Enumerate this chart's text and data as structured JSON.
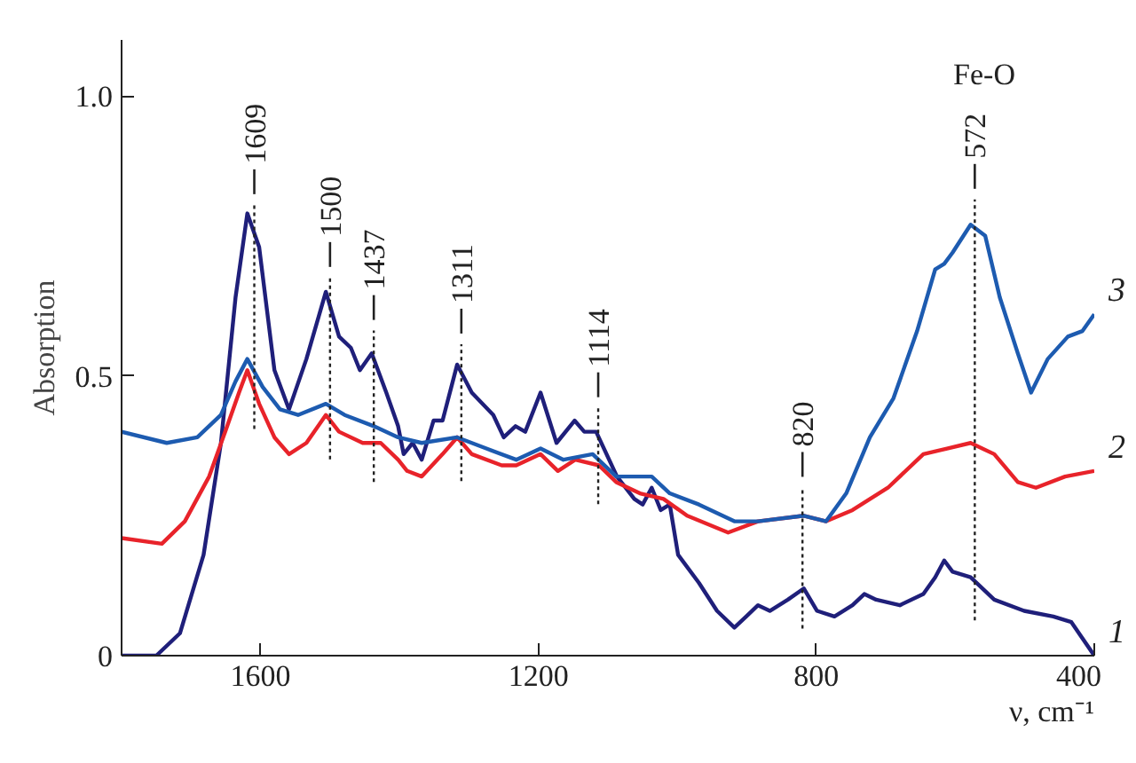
{
  "chart_data": {
    "type": "line",
    "xlabel": "ν, cm⁻¹",
    "ylabel": "Absorption",
    "xlim": [
      1800,
      400
    ],
    "ylim": [
      0,
      1.1
    ],
    "xticks": [
      1600,
      1200,
      800,
      400
    ],
    "yticks": [
      0,
      0.5,
      {
        "value": 1,
        "label": "1.0"
      }
    ],
    "grid": false,
    "line_style": "solid",
    "marker": "none",
    "series": [
      {
        "name": "1",
        "color": "#1f1f7a",
        "x": [
          1800,
          1750,
          1716,
          1682,
          1657,
          1636,
          1619,
          1602,
          1580,
          1559,
          1534,
          1506,
          1487,
          1470,
          1457,
          1440,
          1419,
          1402,
          1394,
          1381,
          1368,
          1351,
          1338,
          1317,
          1296,
          1265,
          1250,
          1233,
          1219,
          1197,
          1174,
          1148,
          1134,
          1117,
          1087,
          1062,
          1050,
          1037,
          1024,
          1011,
          999,
          969,
          943,
          918,
          901,
          884,
          867,
          841,
          818,
          799,
          774,
          748,
          731,
          714,
          680,
          646,
          629,
          616,
          604,
          578,
          544,
          501,
          459,
          433,
          400
        ],
        "values": [
          0,
          0,
          0.04,
          0.18,
          0.38,
          0.64,
          0.79,
          0.73,
          0.51,
          0.44,
          0.53,
          0.65,
          0.57,
          0.55,
          0.51,
          0.54,
          0.47,
          0.41,
          0.36,
          0.38,
          0.35,
          0.42,
          0.42,
          0.52,
          0.47,
          0.43,
          0.39,
          0.41,
          0.4,
          0.47,
          0.38,
          0.42,
          0.4,
          0.4,
          0.32,
          0.28,
          0.27,
          0.3,
          0.26,
          0.27,
          0.18,
          0.13,
          0.08,
          0.05,
          0.07,
          0.09,
          0.08,
          0.1,
          0.12,
          0.08,
          0.07,
          0.09,
          0.11,
          0.1,
          0.09,
          0.11,
          0.14,
          0.17,
          0.15,
          0.14,
          0.1,
          0.08,
          0.07,
          0.06,
          0
        ]
      },
      {
        "name": "2",
        "color": "#e8232a",
        "x": [
          1800,
          1742,
          1709,
          1674,
          1648,
          1631,
          1619,
          1602,
          1580,
          1559,
          1534,
          1506,
          1487,
          1453,
          1427,
          1402,
          1389,
          1368,
          1338,
          1317,
          1296,
          1253,
          1232,
          1197,
          1172,
          1147,
          1113,
          1088,
          1054,
          1020,
          986,
          927,
          884,
          818,
          786,
          748,
          697,
          646,
          612,
          578,
          544,
          510,
          484,
          442,
          400
        ],
        "values": [
          0.21,
          0.2,
          0.24,
          0.32,
          0.41,
          0.47,
          0.51,
          0.45,
          0.39,
          0.36,
          0.38,
          0.43,
          0.4,
          0.38,
          0.38,
          0.35,
          0.33,
          0.32,
          0.36,
          0.39,
          0.36,
          0.34,
          0.34,
          0.36,
          0.33,
          0.35,
          0.34,
          0.31,
          0.29,
          0.28,
          0.25,
          0.22,
          0.24,
          0.25,
          0.24,
          0.26,
          0.3,
          0.36,
          0.37,
          0.38,
          0.36,
          0.31,
          0.3,
          0.32,
          0.33
        ]
      },
      {
        "name": "3",
        "color": "#1d5bb0",
        "x": [
          1800,
          1735,
          1691,
          1657,
          1636,
          1619,
          1597,
          1572,
          1546,
          1506,
          1479,
          1437,
          1402,
          1368,
          1317,
          1275,
          1232,
          1197,
          1164,
          1122,
          1088,
          1037,
          1011,
          969,
          918,
          884,
          818,
          786,
          757,
          723,
          689,
          655,
          629,
          616,
          604,
          578,
          557,
          536,
          510,
          491,
          467,
          438,
          417,
          400
        ],
        "values": [
          0.4,
          0.38,
          0.39,
          0.43,
          0.49,
          0.53,
          0.48,
          0.44,
          0.43,
          0.45,
          0.43,
          0.41,
          0.39,
          0.38,
          0.39,
          0.37,
          0.35,
          0.37,
          0.35,
          0.36,
          0.32,
          0.32,
          0.29,
          0.27,
          0.24,
          0.24,
          0.25,
          0.24,
          0.29,
          0.39,
          0.46,
          0.58,
          0.69,
          0.7,
          0.72,
          0.77,
          0.75,
          0.64,
          0.54,
          0.47,
          0.53,
          0.57,
          0.58,
          0.61
        ]
      }
    ],
    "ref_lines": [
      {
        "axis": "x",
        "value": 1609,
        "label": "1609",
        "line_style": "dotted",
        "color": "#222222"
      },
      {
        "axis": "x",
        "value": 1500,
        "label": "1500",
        "line_style": "dotted",
        "color": "#222222"
      },
      {
        "axis": "x",
        "value": 1437,
        "label": "1437",
        "line_style": "dotted",
        "color": "#222222"
      },
      {
        "axis": "x",
        "value": 1311,
        "label": "1311",
        "line_style": "dotted",
        "color": "#222222"
      },
      {
        "axis": "x",
        "value": 1114,
        "label": "1114",
        "line_style": "dotted",
        "color": "#222222"
      },
      {
        "axis": "x",
        "value": 820,
        "label": "820",
        "line_style": "dotted",
        "color": "#222222"
      },
      {
        "axis": "x",
        "value": 572,
        "label": "572",
        "line_style": "dotted",
        "color": "#222222"
      }
    ],
    "annotations": [
      "Fe-O"
    ]
  }
}
